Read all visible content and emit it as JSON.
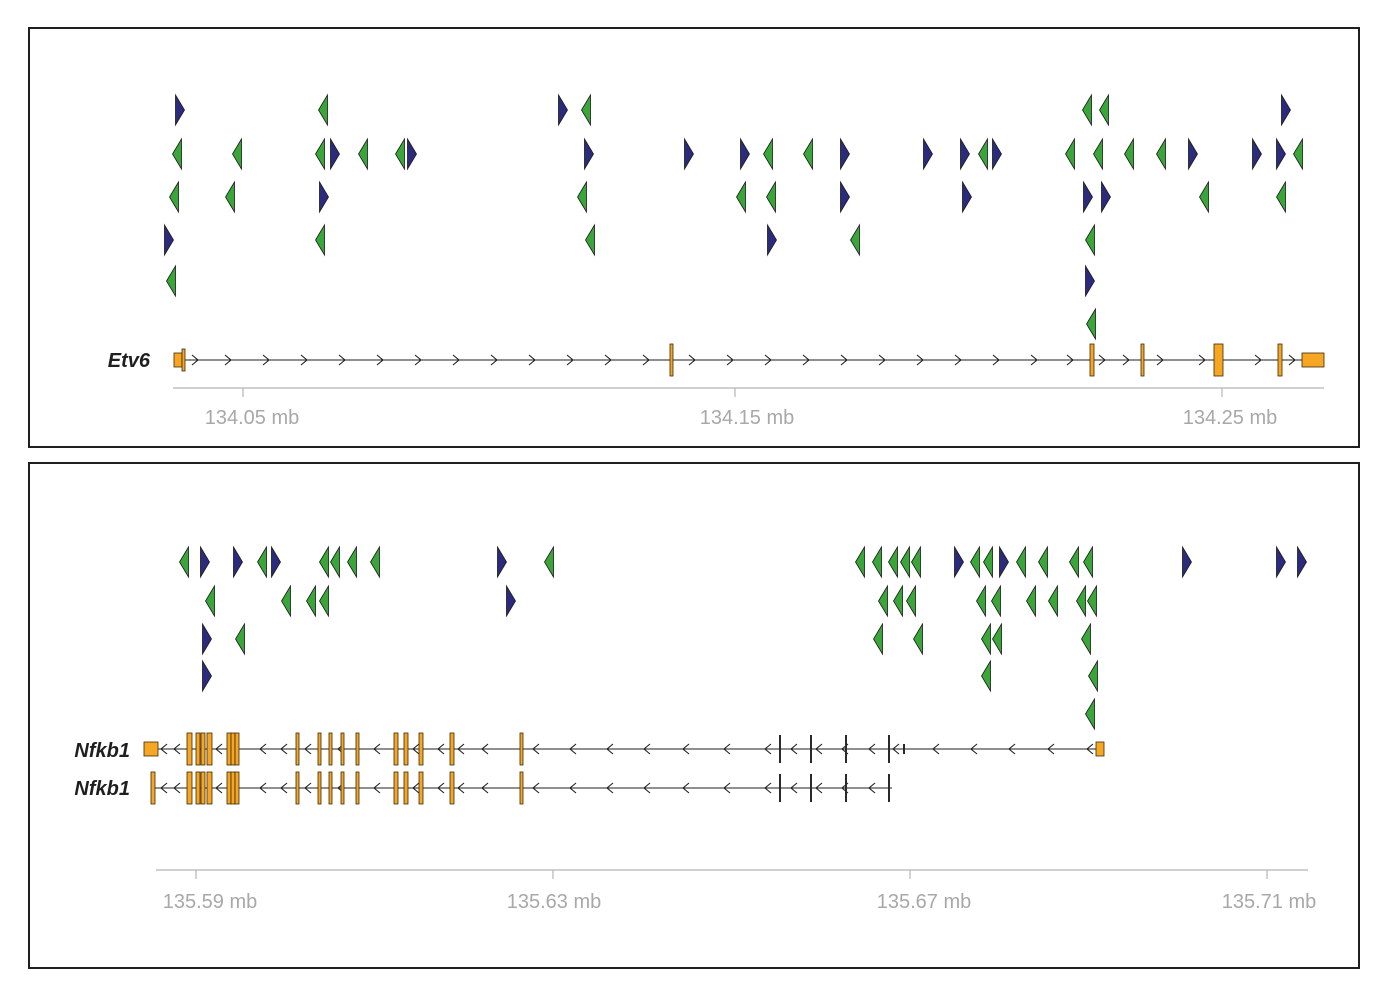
{
  "colors": {
    "forward_motif": "#2b2a7c",
    "reverse_motif": "#3aa63a",
    "exon": "#f6a623",
    "intron": "#1f1f1f",
    "axis": "#b5b5b5",
    "axis_label": "#a8a8a8"
  },
  "panels": [
    {
      "gene": "Etv6",
      "strand": "+",
      "axis": {
        "tick_labels": [
          "134.05 mb",
          "134.15 mb",
          "134.25 mb"
        ]
      },
      "transcripts": [
        {
          "label": "Etv6",
          "exon_count": 8
        }
      ]
    },
    {
      "gene": "Nfkb1",
      "strand": "-",
      "axis": {
        "tick_labels": [
          "135.59 mb",
          "135.63 mb",
          "135.67 mb",
          "135.71 mb"
        ]
      },
      "transcripts": [
        {
          "label": "Nfkb1",
          "exon_count": 24
        },
        {
          "label": "Nfkb1",
          "exon_count": 21
        }
      ]
    }
  ]
}
